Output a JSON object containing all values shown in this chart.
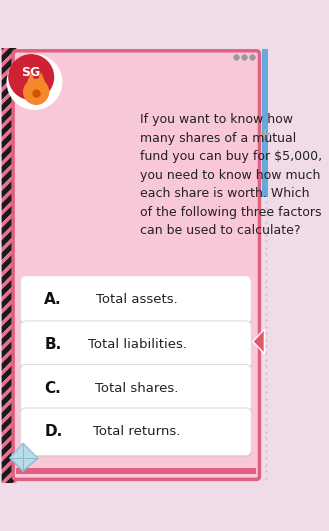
{
  "bg_outer": "#f0dce8",
  "card_bg": "#f9c8d8",
  "card_border": "#e06080",
  "question_text": "If you want to know how\nmany shares of a mutual\nfund you can buy for $5,000,\nyou need to know how much\neach share is worth. Which\nof the following three factors\ncan be used to calculate?",
  "answers": [
    {
      "label": "A.",
      "text": "Total assets."
    },
    {
      "label": "B.",
      "text": "Total liabilities."
    },
    {
      "label": "C.",
      "text": "Total shares."
    },
    {
      "label": "D.",
      "text": "Total returns."
    }
  ],
  "text_color": "#222222",
  "sg_red": "#cc2233",
  "sg_text": "SG",
  "accent_triangle_color": "#e05868",
  "accent_blue": "#5599cc",
  "figsize": [
    3.29,
    5.31
  ],
  "dpi": 100
}
